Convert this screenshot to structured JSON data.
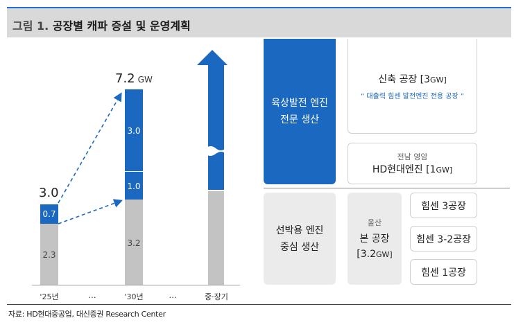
{
  "header": {
    "figure_label": "그림 1.",
    "title": "공장별 캐파 증설 및 운영계획"
  },
  "source": "자료: HD현대중공업, 대신증권 Research Center",
  "chart_data": {
    "type": "bar",
    "categories": [
      "'25년",
      "…",
      "'30년",
      "…",
      "중·장기"
    ],
    "stack_2025": {
      "base": 2.3,
      "added": 0.7,
      "total": 3.0
    },
    "stack_2030": {
      "base": 3.2,
      "added_1": 1.0,
      "added_2": 3.0,
      "total": 7.2,
      "unit": "GW"
    },
    "colors": {
      "base": "#c3c3c3",
      "added": "#1a68bf"
    }
  },
  "chart_text": {
    "val_25_base": "2.3",
    "val_25_add": "0.7",
    "total_25": "3.0",
    "val_30_base": "3.2",
    "val_30_add1": "1.0",
    "val_30_add2": "3.0",
    "total_30": "7.2",
    "total_30_unit": "GW",
    "x_25": "'25년",
    "x_gap1": "…",
    "x_30": "'30년",
    "x_gap2": "…",
    "x_long": "중·장기"
  },
  "diagram": {
    "top_group_label": [
      "육상발전 엔진",
      "전문 생산"
    ],
    "new_plant": {
      "name": "신축 공장",
      "capacity_open": "[3",
      "capacity_unit": "GW]",
      "note": "“ 대출력 힘센 발전엔진 전용 공장 ”"
    },
    "hd_plant": {
      "location": "전남 영암",
      "name": "HD현대엔진",
      "capacity_open": "[1",
      "capacity_unit": "GW]"
    },
    "bottom_group_label": [
      "선박용 엔진",
      "중심 생산"
    ],
    "main_plant": {
      "location": "울산",
      "name": "본 공장",
      "capacity_open": "[3.2",
      "capacity_unit": "GW]"
    },
    "sub_plants": [
      "힘센 3공장",
      "힘센 3-2공장",
      "힘센 1공장"
    ]
  },
  "colors": {
    "accent": "#1a68bf",
    "title_bg": "#d9d9d9",
    "gray_bar": "#c3c3c3"
  }
}
